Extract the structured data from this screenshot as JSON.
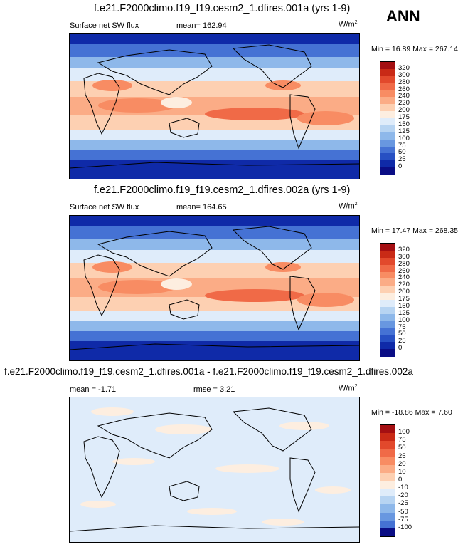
{
  "season": "ANN",
  "chart_data": [
    {
      "type": "heatmap",
      "title": "f.e21.F2000climo.f19_f19.cesm2_1.dfires.001a (yrs 1-9)",
      "left_label": "Surface net SW flux",
      "mean_text": "mean= 162.94",
      "units": "W/m",
      "units_sup": "2",
      "minmax_text": "Min =  16.89 Max = 267.14",
      "min": 16.89,
      "max": 267.14,
      "mean": 162.94,
      "colorbar_levels": [
        "320",
        "300",
        "280",
        "260",
        "240",
        "220",
        "200",
        "175",
        "150",
        "125",
        "100",
        "75",
        "50",
        "25",
        "0"
      ],
      "colorbar_colors": [
        "#a40f12",
        "#c92a16",
        "#e2492c",
        "#f06a47",
        "#f88c63",
        "#fbac86",
        "#fdd0b2",
        "#fdeee0",
        "#dfecfa",
        "#b7d4f2",
        "#8eb8ea",
        "#6897e0",
        "#4572d4",
        "#2750c3",
        "#0f2aa8",
        "#0a0d85"
      ]
    },
    {
      "type": "heatmap",
      "title": "f.e21.F2000climo.f19_f19.cesm2_1.dfires.002a (yrs 1-9)",
      "left_label": "Surface net SW flux",
      "mean_text": "mean= 164.65",
      "units": "W/m",
      "units_sup": "2",
      "minmax_text": "Min =  17.47 Max = 268.35",
      "min": 17.47,
      "max": 268.35,
      "mean": 164.65,
      "colorbar_levels": [
        "320",
        "300",
        "280",
        "260",
        "240",
        "220",
        "200",
        "175",
        "150",
        "125",
        "100",
        "75",
        "50",
        "25",
        "0"
      ],
      "colorbar_colors": [
        "#a40f12",
        "#c92a16",
        "#e2492c",
        "#f06a47",
        "#f88c63",
        "#fbac86",
        "#fdd0b2",
        "#fdeee0",
        "#dfecfa",
        "#b7d4f2",
        "#8eb8ea",
        "#6897e0",
        "#4572d4",
        "#2750c3",
        "#0f2aa8",
        "#0a0d85"
      ]
    },
    {
      "type": "heatmap",
      "title": "f.e21.F2000climo.f19_f19.cesm2_1.dfires.001a - f.e21.F2000climo.f19_f19.cesm2_1.dfires.002a",
      "left_label": "mean =  -1.71",
      "mean_text": "rmse =  3.21",
      "units": "W/m",
      "units_sup": "2",
      "minmax_text": "Min = -18.86 Max =  7.60",
      "min": -18.86,
      "max": 7.6,
      "mean": -1.71,
      "rmse": 3.21,
      "colorbar_levels": [
        "100",
        "75",
        "50",
        "25",
        "20",
        "10",
        "0",
        "-10",
        "-20",
        "-25",
        "-50",
        "-75",
        "-100"
      ],
      "colorbar_colors": [
        "#a40f12",
        "#c92a16",
        "#e2492c",
        "#f06a47",
        "#f88c63",
        "#fbac86",
        "#fdd0b2",
        "#fdeee0",
        "#dfecfa",
        "#b7d4f2",
        "#8eb8ea",
        "#6897e0",
        "#4572d4",
        "#0a0d85"
      ]
    }
  ]
}
